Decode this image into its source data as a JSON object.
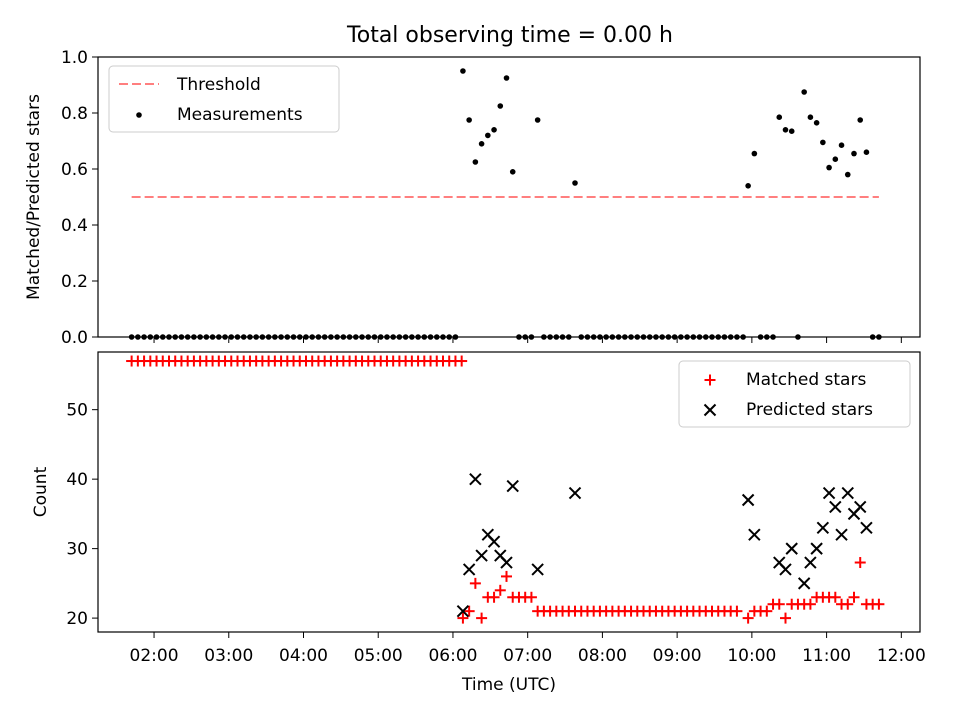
{
  "figure": {
    "title": "Total observing time = 0.00 h"
  },
  "chart_data": [
    {
      "type": "scatter",
      "panel": "top",
      "ylabel": "Matched/Predicted stars",
      "ylim": [
        0.0,
        1.0
      ],
      "yticks": [
        "0.0",
        "0.2",
        "0.4",
        "0.6",
        "0.8",
        "1.0"
      ],
      "xlim_hours": [
        1.25,
        12.25
      ],
      "xtick_labels_shown": false,
      "legend_position": "top-left",
      "series": [
        {
          "name": "Threshold",
          "kind": "line",
          "style": "dashed",
          "color": "#ff7f7f",
          "x_start": "01:42",
          "x_end": "11:42",
          "y": 0.5
        },
        {
          "name": "Measurements",
          "kind": "scatter",
          "color": "#000000",
          "points": [
            [
              "06:08",
              0.95
            ],
            [
              "06:13",
              0.775
            ],
            [
              "06:18",
              0.625
            ],
            [
              "06:23",
              0.69
            ],
            [
              "06:28",
              0.72
            ],
            [
              "06:33",
              0.74
            ],
            [
              "06:38",
              0.825
            ],
            [
              "06:43",
              0.925
            ],
            [
              "06:48",
              0.59
            ],
            [
              "07:08",
              0.775
            ],
            [
              "07:38",
              0.55
            ],
            [
              "09:57",
              0.54
            ],
            [
              "10:02",
              0.655
            ],
            [
              "10:22",
              0.785
            ],
            [
              "10:27",
              0.74
            ],
            [
              "10:32",
              0.735
            ],
            [
              "10:42",
              0.875
            ],
            [
              "10:47",
              0.785
            ],
            [
              "10:52",
              0.765
            ],
            [
              "10:57",
              0.695
            ],
            [
              "11:02",
              0.605
            ],
            [
              "11:07",
              0.635
            ],
            [
              "11:12",
              0.685
            ],
            [
              "11:17",
              0.58
            ],
            [
              "11:22",
              0.655
            ],
            [
              "11:27",
              0.775
            ],
            [
              "11:32",
              0.66
            ]
          ],
          "zero_times": [
            [
              "01:42",
              "06:03",
              5
            ],
            [
              "06:53",
              "07:03",
              5
            ],
            [
              "07:13",
              "07:33",
              5
            ],
            [
              "07:43",
              "09:53",
              5
            ],
            [
              "10:07",
              "10:17",
              5
            ],
            [
              "10:37",
              "10:37",
              5
            ],
            [
              "11:37",
              "11:42",
              5
            ]
          ]
        }
      ]
    },
    {
      "type": "scatter",
      "panel": "bottom",
      "xlabel": "Time (UTC)",
      "ylabel": "Count",
      "ylim": [
        18,
        58.3
      ],
      "yticks": [
        "20",
        "30",
        "40",
        "50"
      ],
      "xlim_hours": [
        1.25,
        12.25
      ],
      "xticks": [
        "02:00",
        "03:00",
        "04:00",
        "05:00",
        "06:00",
        "07:00",
        "08:00",
        "09:00",
        "10:00",
        "11:00",
        "12:00"
      ],
      "legend_position": "top-right",
      "series": [
        {
          "name": "Matched stars",
          "marker": "plus",
          "color": "#ff0000",
          "runs": [
            [
              "01:42",
              "06:08",
              5,
              57
            ]
          ],
          "points": [
            [
              "06:08",
              20
            ],
            [
              "06:13",
              21
            ],
            [
              "06:18",
              25
            ],
            [
              "06:23",
              20
            ],
            [
              "06:28",
              23
            ],
            [
              "06:33",
              23
            ],
            [
              "06:38",
              24
            ],
            [
              "06:43",
              26
            ],
            [
              "06:48",
              23
            ],
            [
              "06:53",
              23
            ],
            [
              "06:58",
              23
            ],
            [
              "07:03",
              23
            ],
            [
              "09:57",
              20
            ],
            [
              "10:02",
              21
            ],
            [
              "10:07",
              21
            ],
            [
              "10:12",
              21
            ],
            [
              "10:17",
              22
            ],
            [
              "10:22",
              22
            ],
            [
              "10:27",
              20
            ],
            [
              "10:32",
              22
            ],
            [
              "10:37",
              22
            ],
            [
              "10:42",
              22
            ],
            [
              "10:47",
              22
            ],
            [
              "10:52",
              23
            ],
            [
              "10:57",
              23
            ],
            [
              "11:02",
              23
            ],
            [
              "11:07",
              23
            ],
            [
              "11:12",
              22
            ],
            [
              "11:17",
              22
            ],
            [
              "11:22",
              23
            ],
            [
              "11:27",
              28
            ],
            [
              "11:32",
              22
            ],
            [
              "11:37",
              22
            ],
            [
              "11:42",
              22
            ]
          ],
          "runs_extra": [
            [
              "07:08",
              "09:52",
              5,
              21
            ]
          ]
        },
        {
          "name": "Predicted stars",
          "marker": "x",
          "color": "#000000",
          "points": [
            [
              "06:08",
              21
            ],
            [
              "06:13",
              27
            ],
            [
              "06:18",
              40
            ],
            [
              "06:23",
              29
            ],
            [
              "06:28",
              32
            ],
            [
              "06:33",
              31
            ],
            [
              "06:38",
              29
            ],
            [
              "06:43",
              28
            ],
            [
              "06:48",
              39
            ],
            [
              "07:08",
              27
            ],
            [
              "07:38",
              38
            ],
            [
              "09:57",
              37
            ],
            [
              "10:02",
              32
            ],
            [
              "10:22",
              28
            ],
            [
              "10:27",
              27
            ],
            [
              "10:32",
              30
            ],
            [
              "10:42",
              25
            ],
            [
              "10:47",
              28
            ],
            [
              "10:52",
              30
            ],
            [
              "10:57",
              33
            ],
            [
              "11:02",
              38
            ],
            [
              "11:07",
              36
            ],
            [
              "11:12",
              32
            ],
            [
              "11:17",
              38
            ],
            [
              "11:22",
              35
            ],
            [
              "11:27",
              36
            ],
            [
              "11:32",
              33
            ]
          ]
        }
      ]
    }
  ]
}
